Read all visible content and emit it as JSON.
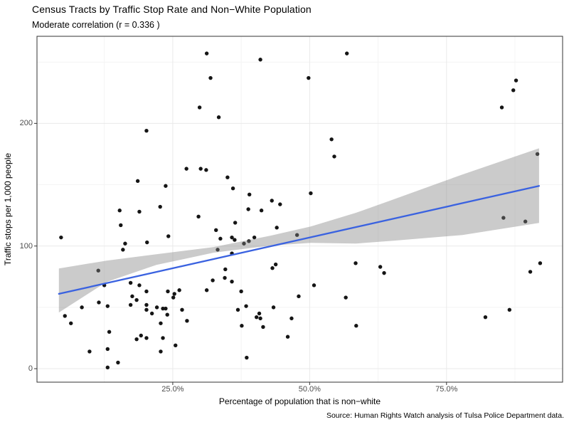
{
  "header": {
    "title": "Census Tracts by Traffic Stop Rate and Non−White Population",
    "subtitle": "Moderate correlation (r =  0.336 )"
  },
  "caption": "Source: Human Rights Watch analysis of Tulsa Police Department data.",
  "chart_data": {
    "type": "scatter",
    "title": "Census Tracts by Traffic Stop Rate and Non−White Population",
    "subtitle": "Moderate correlation (r =  0.336 )",
    "xlabel": "Percentage of population that is non−white",
    "ylabel": "Traffic stops per 1,000 people",
    "caption": "Source: Human Rights Watch analysis of Tulsa Police Department data.",
    "x_unit": "percent of population non-white",
    "y_unit": "traffic stops per 1,000 people",
    "xlim": [
      0.2,
      96.2
    ],
    "ylim": [
      -11,
      271
    ],
    "grid": true,
    "legend": false,
    "x_ticks": [
      {
        "v": 25,
        "label": "25.0%"
      },
      {
        "v": 50,
        "label": "50.0%"
      },
      {
        "v": 75,
        "label": "75.0%"
      }
    ],
    "y_ticks": [
      {
        "v": 0,
        "label": "0"
      },
      {
        "v": 100,
        "label": "100"
      },
      {
        "v": 200,
        "label": "200"
      }
    ],
    "x_minor": [
      12.5,
      37.5,
      62.5,
      87.5
    ],
    "y_minor": [
      50,
      150,
      250
    ],
    "colors": {
      "point": "#151515",
      "smooth_line": "#3A62E0",
      "ribbon": "#828282",
      "ribbon_opacity": 0.42,
      "panel_border": "#333333",
      "grid_major": "#e9e9e9",
      "grid_minor": "#f4f4f4",
      "tick_text": "#4d4d4d"
    },
    "points": [
      [
        31.2,
        257
      ],
      [
        31.9,
        237
      ],
      [
        29.9,
        213
      ],
      [
        20.2,
        194
      ],
      [
        41,
        252
      ],
      [
        56.8,
        257
      ],
      [
        49.8,
        237
      ],
      [
        33.4,
        205
      ],
      [
        54,
        187
      ],
      [
        87.7,
        235
      ],
      [
        87.2,
        227
      ],
      [
        85.1,
        213
      ],
      [
        91.6,
        175
      ],
      [
        85.4,
        123
      ],
      [
        89.4,
        120
      ],
      [
        92.1,
        86
      ],
      [
        27.5,
        163
      ],
      [
        30.1,
        163
      ],
      [
        31.1,
        162
      ],
      [
        18.6,
        153
      ],
      [
        23.7,
        149
      ],
      [
        15.3,
        129
      ],
      [
        18.9,
        128
      ],
      [
        22.7,
        132
      ],
      [
        29.7,
        124
      ],
      [
        15.5,
        117
      ],
      [
        4.6,
        107
      ],
      [
        24.2,
        108
      ],
      [
        16.3,
        102
      ],
      [
        20.3,
        103
      ],
      [
        15.9,
        97
      ],
      [
        54.5,
        173
      ],
      [
        35,
        156
      ],
      [
        36,
        147
      ],
      [
        39,
        142
      ],
      [
        43.1,
        137
      ],
      [
        44.6,
        134
      ],
      [
        50.2,
        143
      ],
      [
        38.8,
        130
      ],
      [
        41.2,
        129
      ],
      [
        36.4,
        119
      ],
      [
        44,
        115
      ],
      [
        32.9,
        113
      ],
      [
        33.7,
        106
      ],
      [
        35.8,
        107
      ],
      [
        36.3,
        105
      ],
      [
        38.9,
        104
      ],
      [
        39.9,
        107
      ],
      [
        38,
        102
      ],
      [
        33.2,
        97
      ],
      [
        35.8,
        94
      ],
      [
        47.7,
        109
      ],
      [
        58.4,
        86
      ],
      [
        62.9,
        83
      ],
      [
        63.6,
        78
      ],
      [
        43.8,
        85
      ],
      [
        34.6,
        81
      ],
      [
        43.2,
        82
      ],
      [
        11.4,
        80
      ],
      [
        12.5,
        68
      ],
      [
        17.3,
        70
      ],
      [
        18.9,
        68
      ],
      [
        20.2,
        63
      ],
      [
        24.1,
        63
      ],
      [
        25.3,
        61
      ],
      [
        26.2,
        64
      ],
      [
        25.1,
        58
      ],
      [
        31.2,
        64
      ],
      [
        32.3,
        72
      ],
      [
        11.5,
        54
      ],
      [
        13.1,
        51
      ],
      [
        17.6,
        59
      ],
      [
        18.4,
        56
      ],
      [
        17.3,
        52
      ],
      [
        20.2,
        52
      ],
      [
        20.2,
        48
      ],
      [
        21.2,
        45
      ],
      [
        22.1,
        50
      ],
      [
        23.2,
        49
      ],
      [
        23.7,
        49
      ],
      [
        24,
        44
      ],
      [
        26.7,
        48
      ],
      [
        8.4,
        50
      ],
      [
        5.3,
        43
      ],
      [
        6.4,
        37
      ],
      [
        27.6,
        39
      ],
      [
        22.8,
        37
      ],
      [
        13.4,
        30
      ],
      [
        19.2,
        27
      ],
      [
        18.4,
        24
      ],
      [
        20.2,
        25
      ],
      [
        23.2,
        25
      ],
      [
        25.5,
        19
      ],
      [
        22.8,
        14
      ],
      [
        9.8,
        14
      ],
      [
        13.1,
        16
      ],
      [
        15,
        5
      ],
      [
        13.1,
        1
      ],
      [
        34.5,
        74
      ],
      [
        35.8,
        71
      ],
      [
        37.5,
        63
      ],
      [
        48,
        59
      ],
      [
        50.8,
        68
      ],
      [
        56.6,
        58
      ],
      [
        38.4,
        51
      ],
      [
        36.9,
        48
      ],
      [
        43.4,
        50
      ],
      [
        40.8,
        45
      ],
      [
        40.3,
        42
      ],
      [
        41,
        41
      ],
      [
        46.7,
        41
      ],
      [
        37.6,
        35
      ],
      [
        41.5,
        34
      ],
      [
        58.5,
        35
      ],
      [
        46,
        26
      ],
      [
        38.5,
        9
      ],
      [
        90.3,
        79
      ],
      [
        86.5,
        48
      ],
      [
        82.1,
        42
      ]
    ],
    "smooth": {
      "method": "linear",
      "x": [
        4.2,
        91.9
      ],
      "y": [
        61,
        149
      ]
    },
    "ribbon": {
      "x": [
        4.2,
        12.9,
        22.0,
        32.4,
        42.8,
        50.2,
        58.4,
        65.3,
        77.9,
        91.9
      ],
      "top": [
        81.7,
        88.1,
        93.3,
        99.1,
        108.4,
        115.9,
        127.0,
        138.0,
        158.3,
        179.7
      ],
      "bottom": [
        45.8,
        70.7,
        84.6,
        94.5,
        100.3,
        102.6,
        102.0,
        104.3,
        109.0,
        118.8
      ]
    }
  }
}
